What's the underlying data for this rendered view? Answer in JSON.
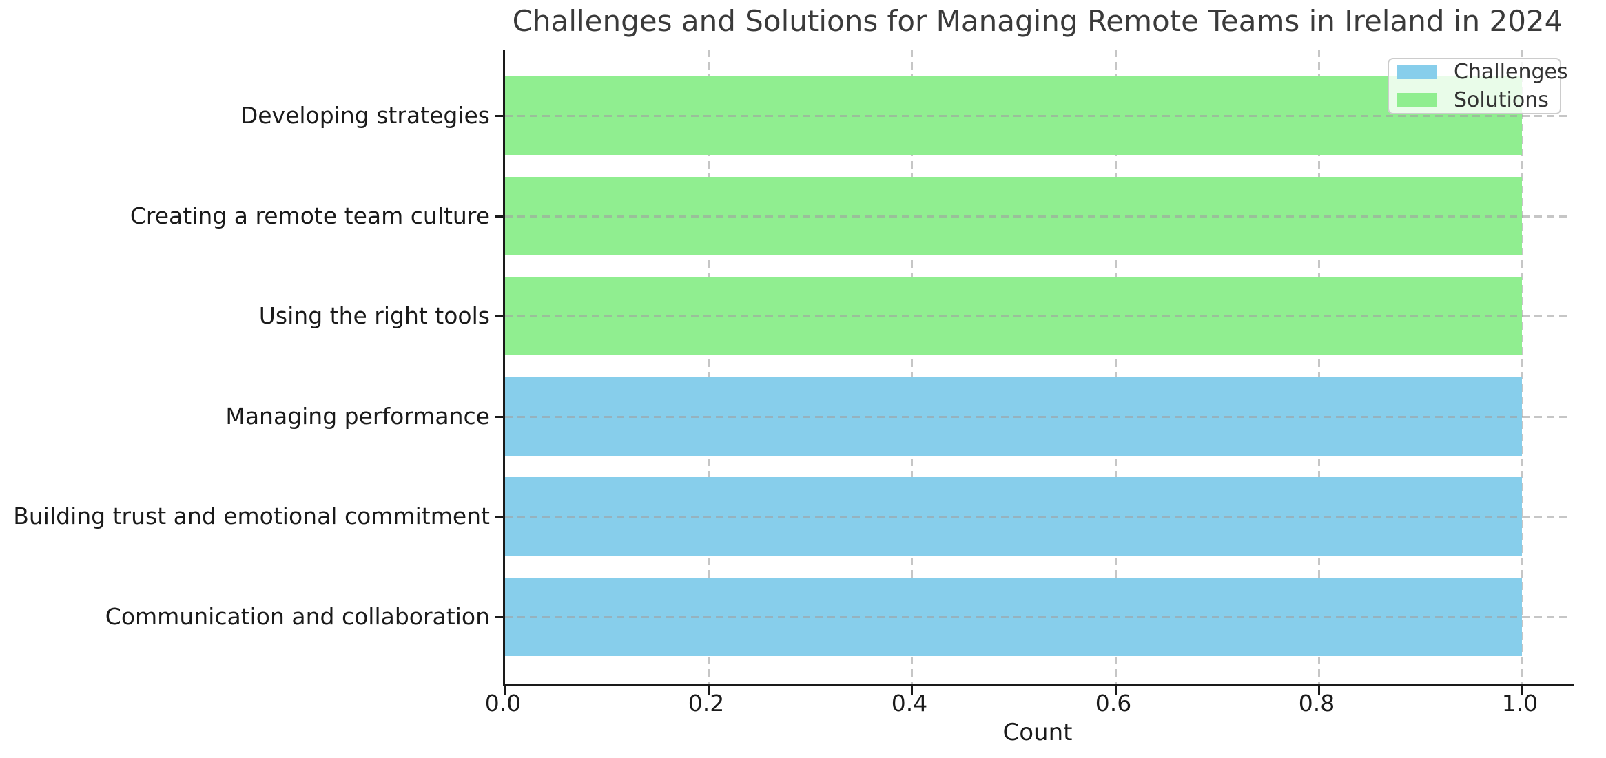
{
  "title": "Challenges and Solutions for Managing Remote Teams in Ireland in 2024",
  "chart_data": {
    "type": "bar",
    "orientation": "horizontal",
    "title": "Challenges and Solutions for Managing Remote Teams in Ireland in 2024",
    "xlabel": "Count",
    "ylabel": "",
    "xlim": [
      0.0,
      1.05
    ],
    "x_tick_values": [
      0.0,
      0.2,
      0.4,
      0.6,
      0.8,
      1.0
    ],
    "x_tick_labels": [
      "0.0",
      "0.2",
      "0.4",
      "0.6",
      "0.8",
      "1.0"
    ],
    "grid": "dashed",
    "grid_color": "#a0a0a0",
    "categories": [
      "Developing strategies",
      "Creating a remote team culture",
      "Using the right tools",
      "Managing performance",
      "Building trust and emotional commitment",
      "Communication and collaboration"
    ],
    "bars": [
      {
        "category": "Developing strategies",
        "series": "Solutions",
        "value": 1.0,
        "color": "#90ee90"
      },
      {
        "category": "Creating a remote team culture",
        "series": "Solutions",
        "value": 1.0,
        "color": "#90ee90"
      },
      {
        "category": "Using the right tools",
        "series": "Solutions",
        "value": 1.0,
        "color": "#90ee90"
      },
      {
        "category": "Managing performance",
        "series": "Challenges",
        "value": 1.0,
        "color": "#87ceeb"
      },
      {
        "category": "Building trust and emotional commitment",
        "series": "Challenges",
        "value": 1.0,
        "color": "#87ceeb"
      },
      {
        "category": "Communication and collaboration",
        "series": "Challenges",
        "value": 1.0,
        "color": "#87ceeb"
      }
    ],
    "legend": {
      "position": "upper right",
      "entries": [
        {
          "label": "Challenges",
          "color": "#87ceeb"
        },
        {
          "label": "Solutions",
          "color": "#90ee90"
        }
      ]
    }
  }
}
